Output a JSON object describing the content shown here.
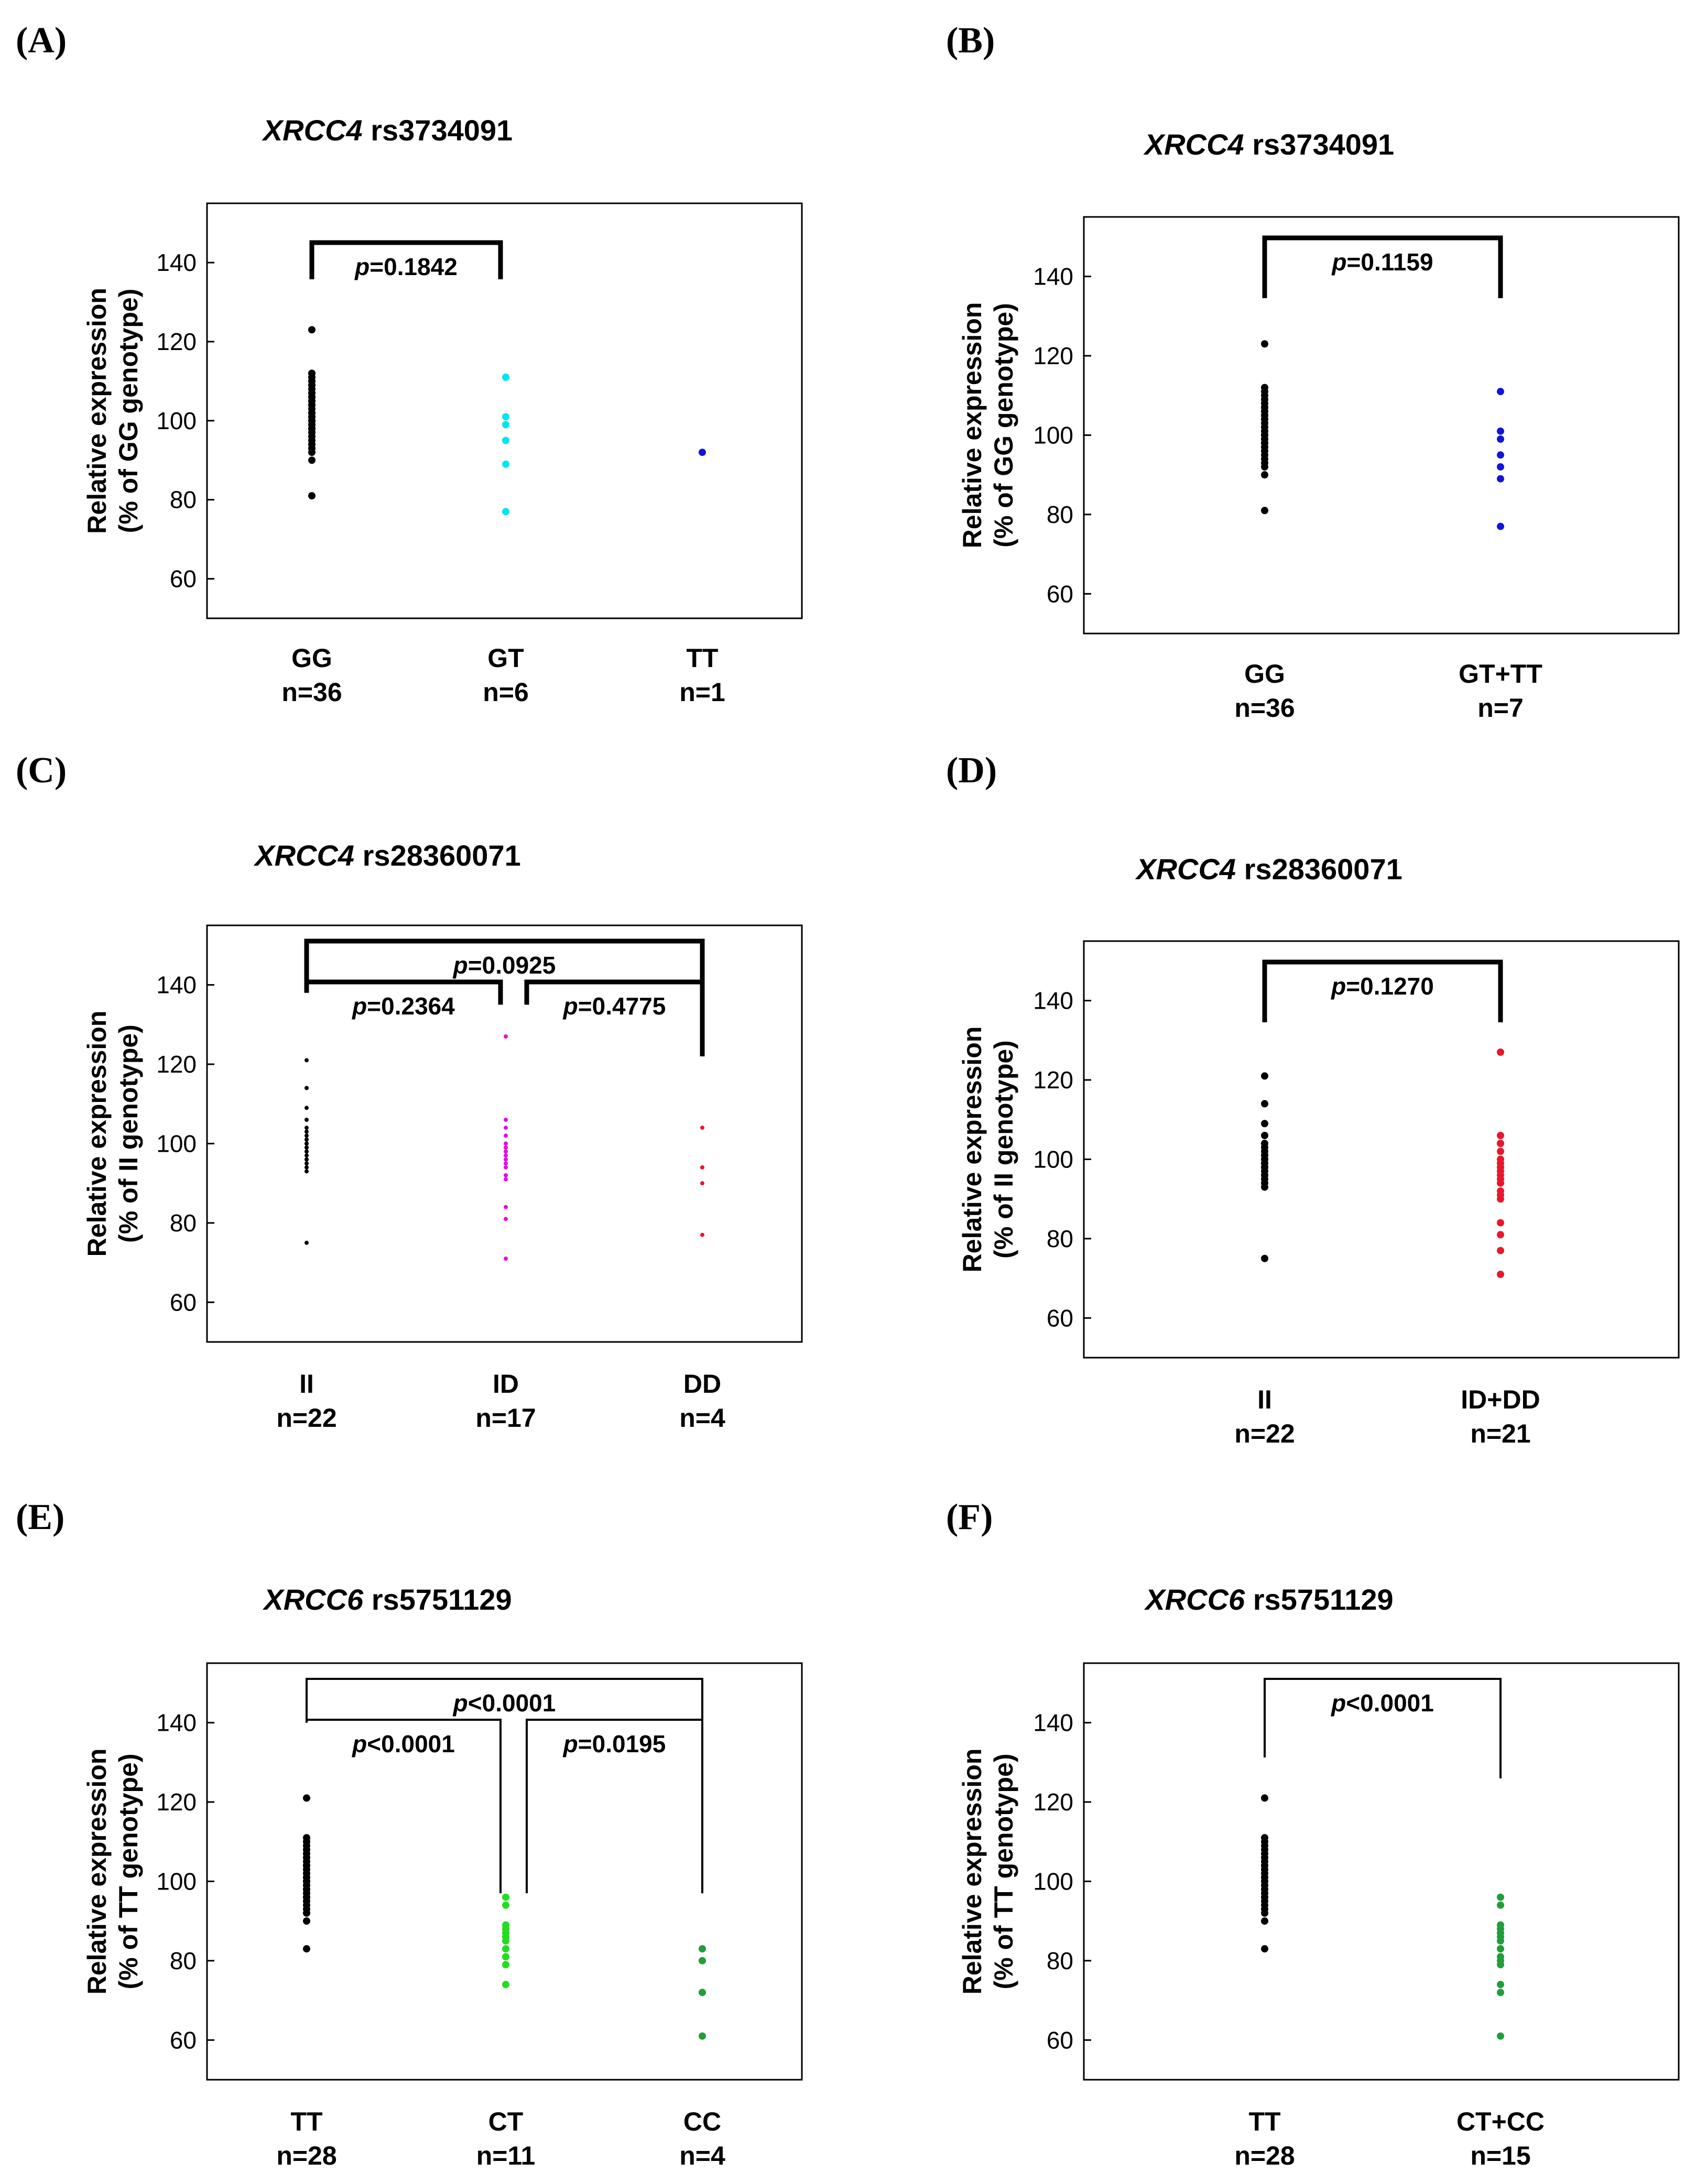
{
  "figure": {
    "panel_labels": [
      "(A)",
      "(B)",
      "(C)",
      "(D)",
      "(E)",
      "(F)"
    ]
  },
  "chart_data": [
    {
      "panel": "(A)",
      "type": "scatter",
      "title_gene": "XRCC4",
      "title_snp": " rs3734091",
      "ylabel_line1": "Relative expression",
      "ylabel_line2": "(% of GG genotype)",
      "ylim": [
        50,
        155
      ],
      "yticks": [
        60,
        80,
        100,
        120,
        140
      ],
      "groups": [
        {
          "name": "GG",
          "n": "n=36",
          "color": "#000000",
          "values": [
            81,
            90,
            92,
            93,
            94,
            95,
            96,
            97,
            97,
            98,
            98,
            99,
            99,
            100,
            100,
            100,
            101,
            101,
            102,
            102,
            103,
            104,
            104,
            105,
            105,
            106,
            106,
            107,
            107,
            108,
            109,
            109,
            110,
            111,
            112,
            123
          ]
        },
        {
          "name": "GT",
          "n": "n=6",
          "color": "#00e5ee",
          "values": [
            77,
            89,
            95,
            99,
            101,
            111
          ]
        },
        {
          "name": "TT",
          "n": "n=1",
          "color": "#1414d8",
          "values": [
            92
          ]
        }
      ],
      "comparisons": [
        {
          "text_p": "p",
          "text_rest": "=0.1842",
          "from": 0,
          "to": 1,
          "level": 1,
          "stroke": "thick"
        }
      ]
    },
    {
      "panel": "(B)",
      "type": "scatter",
      "title_gene": "XRCC4",
      "title_snp": " rs3734091",
      "ylabel_line1": "Relative expression",
      "ylabel_line2": "(% of GG genotype)",
      "ylim": [
        50,
        155
      ],
      "yticks": [
        60,
        80,
        100,
        120,
        140
      ],
      "groups": [
        {
          "name": "GG",
          "n": "n=36",
          "color": "#000000",
          "values": [
            81,
            90,
            92,
            93,
            94,
            95,
            96,
            97,
            97,
            98,
            98,
            99,
            99,
            100,
            100,
            100,
            101,
            101,
            102,
            102,
            103,
            104,
            104,
            105,
            105,
            106,
            106,
            107,
            107,
            108,
            109,
            109,
            110,
            111,
            112,
            123
          ]
        },
        {
          "name": "GT+TT",
          "n": "n=7",
          "color": "#1414d8",
          "values": [
            77,
            89,
            92,
            95,
            99,
            101,
            111
          ]
        }
      ],
      "comparisons": [
        {
          "text_p": "p",
          "text_rest": "=0.1159",
          "from": 0,
          "to": 1,
          "level": 1,
          "stroke": "thick"
        }
      ]
    },
    {
      "panel": "(C)",
      "type": "scatter",
      "title_gene": "XRCC4",
      "title_snp": " rs28360071",
      "ylabel_line1": "Relative expression",
      "ylabel_line2": "(% of II genotype)",
      "ylim": [
        50,
        155
      ],
      "yticks": [
        60,
        80,
        100,
        120,
        140
      ],
      "groups": [
        {
          "name": "II",
          "n": "n=22",
          "color": "#000000",
          "small": true,
          "values": [
            75,
            93,
            94,
            95,
            96,
            96,
            97,
            98,
            98,
            99,
            99,
            100,
            100,
            101,
            101,
            102,
            103,
            104,
            106,
            109,
            114,
            121
          ]
        },
        {
          "name": "ID",
          "n": "n=17",
          "color": "#e010e0",
          "small": true,
          "values": [
            71,
            81,
            84,
            91,
            92,
            94,
            95,
            96,
            97,
            98,
            98,
            99,
            100,
            102,
            104,
            106,
            127
          ]
        },
        {
          "name": "DD",
          "n": "n=4",
          "color": "#e8172d",
          "small": true,
          "values": [
            77,
            90,
            94,
            104
          ]
        }
      ],
      "comparisons": [
        {
          "text_p": "p",
          "text_rest": "=0.2364",
          "from": 0,
          "to": 1,
          "level": 1,
          "stroke": "thick"
        },
        {
          "text_p": "p",
          "text_rest": "=0.4775",
          "from": 1,
          "to": 2,
          "level": 1,
          "stroke": "thick"
        },
        {
          "text_p": "p",
          "text_rest": "=0.0925",
          "from": 0,
          "to": 2,
          "level": 2,
          "stroke": "thick"
        }
      ]
    },
    {
      "panel": "(D)",
      "type": "scatter",
      "title_gene": "XRCC4",
      "title_snp": " rs28360071",
      "ylabel_line1": "Relative expression",
      "ylabel_line2": "(% of II genotype)",
      "ylim": [
        50,
        155
      ],
      "yticks": [
        60,
        80,
        100,
        120,
        140
      ],
      "groups": [
        {
          "name": "II",
          "n": "n=22",
          "color": "#000000",
          "values": [
            75,
            93,
            94,
            95,
            96,
            96,
            97,
            98,
            98,
            99,
            99,
            100,
            100,
            101,
            101,
            102,
            103,
            104,
            106,
            109,
            114,
            121
          ]
        },
        {
          "name": "ID+DD",
          "n": "n=21",
          "color": "#e8172d",
          "values": [
            71,
            77,
            81,
            84,
            90,
            91,
            92,
            94,
            94,
            95,
            96,
            97,
            98,
            98,
            99,
            100,
            102,
            104,
            104,
            106,
            127
          ]
        }
      ],
      "comparisons": [
        {
          "text_p": "p",
          "text_rest": "=0.1270",
          "from": 0,
          "to": 1,
          "level": 1,
          "stroke": "thick"
        }
      ]
    },
    {
      "panel": "(E)",
      "type": "scatter",
      "title_gene": "XRCC6",
      "title_snp": " rs5751129",
      "ylabel_line1": "Relative expression",
      "ylabel_line2": "(% of TT genotype)",
      "ylim": [
        50,
        155
      ],
      "yticks": [
        60,
        80,
        100,
        120,
        140
      ],
      "groups": [
        {
          "name": "TT",
          "n": "n=28",
          "color": "#000000",
          "values": [
            83,
            90,
            92,
            93,
            94,
            95,
            96,
            96,
            97,
            98,
            98,
            99,
            100,
            100,
            101,
            101,
            102,
            103,
            104,
            104,
            105,
            106,
            107,
            108,
            109,
            110,
            111,
            121
          ]
        },
        {
          "name": "CT",
          "n": "n=11",
          "color": "#22dd22",
          "values": [
            74,
            79,
            81,
            83,
            85,
            86,
            87,
            88,
            89,
            94,
            96
          ]
        },
        {
          "name": "CC",
          "n": "n=4",
          "color": "#1f9e3a",
          "values": [
            61,
            72,
            80,
            83
          ]
        }
      ],
      "comparisons": [
        {
          "text_p": "p",
          "text_rest": "<0.0001",
          "from": 0,
          "to": 1,
          "level": 1,
          "stroke": "thin"
        },
        {
          "text_p": "p",
          "text_rest": "=0.0195",
          "from": 1,
          "to": 2,
          "level": 1,
          "stroke": "thin"
        },
        {
          "text_p": "p",
          "text_rest": "<0.0001",
          "from": 0,
          "to": 2,
          "level": 2,
          "stroke": "thin"
        }
      ]
    },
    {
      "panel": "(F)",
      "type": "scatter",
      "title_gene": "XRCC6",
      "title_snp": " rs5751129",
      "ylabel_line1": "Relative expression",
      "ylabel_line2": "(% of TT genotype)",
      "ylim": [
        50,
        155
      ],
      "yticks": [
        60,
        80,
        100,
        120,
        140
      ],
      "groups": [
        {
          "name": "TT",
          "n": "n=28",
          "color": "#000000",
          "values": [
            83,
            90,
            92,
            93,
            94,
            95,
            96,
            96,
            97,
            98,
            98,
            99,
            100,
            100,
            101,
            101,
            102,
            103,
            104,
            104,
            105,
            106,
            107,
            108,
            109,
            110,
            111,
            121
          ]
        },
        {
          "name": "CT+CC",
          "n": "n=15",
          "color": "#1f9e3a",
          "values": [
            61,
            72,
            74,
            79,
            80,
            81,
            83,
            83,
            85,
            86,
            87,
            88,
            89,
            94,
            96
          ]
        }
      ],
      "comparisons": [
        {
          "text_p": "p",
          "text_rest": "<0.0001",
          "from": 0,
          "to": 1,
          "level": 1,
          "stroke": "thin"
        }
      ]
    }
  ]
}
